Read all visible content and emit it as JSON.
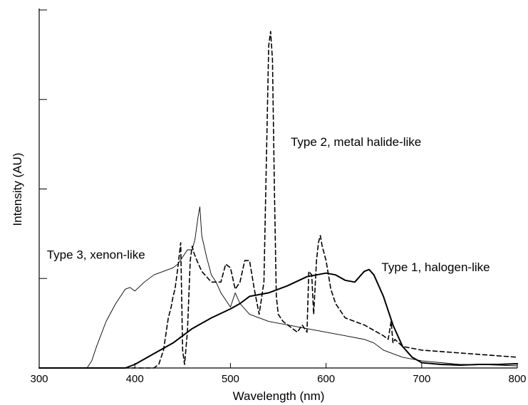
{
  "chart_data": {
    "type": "line",
    "title": "",
    "xlabel": "Wavelength (nm)",
    "ylabel": "Intensity (AU)",
    "xlim": [
      300,
      800
    ],
    "ylim": [
      0,
      1
    ],
    "x_ticks": [
      300,
      400,
      500,
      600,
      700,
      800
    ],
    "y_ticks": [
      0.25,
      0.5,
      0.75,
      1.0
    ],
    "y_tick_labels_shown": false,
    "grid": false,
    "legend": "none",
    "series": [
      {
        "key": "type1",
        "stroke": "#000000",
        "dash": "solid",
        "weight": "heavy",
        "x": [
          300,
          380,
          390,
          400,
          420,
          440,
          460,
          480,
          500,
          510,
          520,
          540,
          560,
          580,
          600,
          610,
          620,
          630,
          640,
          645,
          650,
          660,
          670,
          680,
          690,
          700,
          720,
          740,
          760,
          780,
          800
        ],
        "y": [
          0,
          0,
          0,
          0.01,
          0.04,
          0.07,
          0.11,
          0.14,
          0.165,
          0.18,
          0.2,
          0.21,
          0.23,
          0.255,
          0.265,
          0.26,
          0.245,
          0.24,
          0.27,
          0.275,
          0.26,
          0.2,
          0.12,
          0.06,
          0.03,
          0.015,
          0.01,
          0.008,
          0.01,
          0.01,
          0.012
        ]
      },
      {
        "key": "type2",
        "stroke": "#000000",
        "dash": "dashed",
        "weight": "medium",
        "x": [
          300,
          420,
          425,
          430,
          435,
          438,
          440,
          442,
          445,
          448,
          450,
          452,
          455,
          458,
          460,
          462,
          465,
          470,
          480,
          490,
          495,
          500,
          505,
          510,
          515,
          520,
          525,
          530,
          535,
          540,
          542,
          544,
          546,
          548,
          550,
          555,
          560,
          565,
          570,
          575,
          580,
          582,
          585,
          587,
          590,
          592,
          594,
          596,
          600,
          605,
          610,
          620,
          640,
          660,
          665,
          668,
          670,
          672,
          680,
          700,
          750,
          800
        ],
        "y": [
          0,
          0,
          0.01,
          0.05,
          0.14,
          0.17,
          0.2,
          0.22,
          0.28,
          0.35,
          0.05,
          0.01,
          0.1,
          0.3,
          0.34,
          0.32,
          0.3,
          0.27,
          0.24,
          0.24,
          0.29,
          0.28,
          0.22,
          0.24,
          0.3,
          0.3,
          0.22,
          0.15,
          0.24,
          0.9,
          0.94,
          0.86,
          0.5,
          0.2,
          0.15,
          0.13,
          0.12,
          0.11,
          0.1,
          0.12,
          0.1,
          0.27,
          0.26,
          0.15,
          0.3,
          0.35,
          0.37,
          0.34,
          0.3,
          0.22,
          0.18,
          0.14,
          0.12,
          0.09,
          0.08,
          0.13,
          0.07,
          0.08,
          0.06,
          0.05,
          0.04,
          0.03
        ]
      },
      {
        "key": "type3",
        "stroke": "#000000",
        "dash": "solid",
        "weight": "thin",
        "x": [
          300,
          350,
          355,
          360,
          370,
          380,
          390,
          395,
          400,
          410,
          420,
          430,
          440,
          445,
          450,
          455,
          460,
          463,
          466,
          468,
          470,
          475,
          480,
          485,
          490,
          495,
          500,
          505,
          510,
          520,
          540,
          560,
          580,
          600,
          620,
          640,
          650,
          660,
          680,
          700,
          720,
          740,
          760,
          780,
          800
        ],
        "y": [
          0,
          0,
          0.02,
          0.06,
          0.13,
          0.18,
          0.22,
          0.225,
          0.215,
          0.24,
          0.26,
          0.27,
          0.28,
          0.29,
          0.31,
          0.33,
          0.33,
          0.36,
          0.42,
          0.45,
          0.37,
          0.31,
          0.26,
          0.24,
          0.21,
          0.19,
          0.17,
          0.21,
          0.18,
          0.15,
          0.13,
          0.12,
          0.11,
          0.1,
          0.09,
          0.08,
          0.07,
          0.05,
          0.03,
          0.02,
          0.015,
          0.01,
          0.01,
          0.008,
          0.006
        ]
      }
    ],
    "annotations": [
      {
        "key": "type1",
        "text": "Type 1, halogen-like",
        "x": 658,
        "y": 0.27,
        "anchor": "start"
      },
      {
        "key": "type2",
        "text": "Type 2, metal halide-like",
        "x": 563,
        "y": 0.62,
        "anchor": "start"
      },
      {
        "key": "type3",
        "text": "Type 3, xenon-like",
        "x": 308,
        "y": 0.305,
        "anchor": "start"
      }
    ]
  }
}
